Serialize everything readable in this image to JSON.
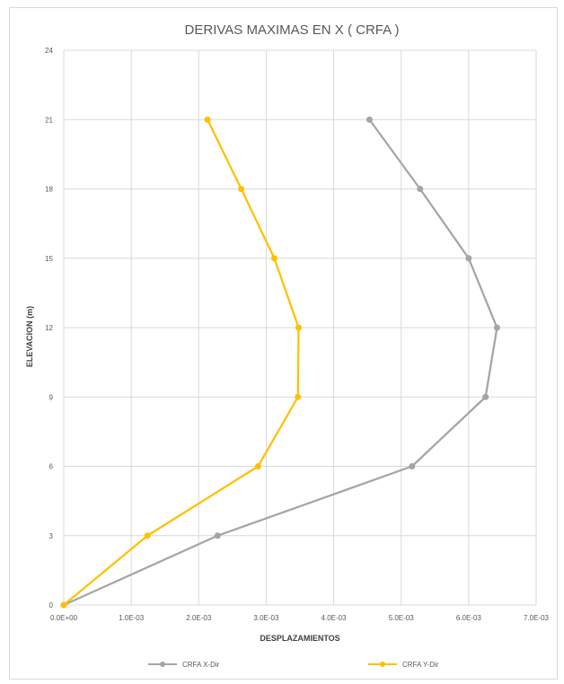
{
  "chart_data": {
    "type": "line",
    "title": "DERIVAS MAXIMAS EN X ( CRFA )",
    "xlabel": "DESPLAZAMIENTOS",
    "ylabel": "ELEVACION (m)",
    "xlim": [
      0,
      0.007
    ],
    "ylim": [
      0,
      24
    ],
    "x_ticks": [
      "0.0E+00",
      "1.0E-03",
      "2.0E-03",
      "3.0E-03",
      "4.0E-03",
      "5.0E-03",
      "6.0E-03",
      "7.0E-03"
    ],
    "y_ticks": [
      "0",
      "3",
      "6",
      "9",
      "12",
      "15",
      "18",
      "21",
      "24"
    ],
    "grid": true,
    "legend_position": "bottom",
    "series": [
      {
        "name": "CRFA X-Dir",
        "color": "#a5a5a5",
        "points": [
          [
            0,
            0
          ],
          [
            0.00228,
            3
          ],
          [
            0.00516,
            6
          ],
          [
            0.00625,
            9
          ],
          [
            0.00642,
            12
          ],
          [
            0.006,
            15
          ],
          [
            0.00528,
            18
          ],
          [
            0.00453,
            21
          ]
        ]
      },
      {
        "name": "CRFA Y-Dir",
        "color": "#ffc000",
        "points": [
          [
            0,
            0
          ],
          [
            0.00124,
            3
          ],
          [
            0.00288,
            6
          ],
          [
            0.00347,
            9
          ],
          [
            0.00348,
            12
          ],
          [
            0.00312,
            15
          ],
          [
            0.00263,
            18
          ],
          [
            0.00213,
            21
          ]
        ]
      }
    ]
  }
}
